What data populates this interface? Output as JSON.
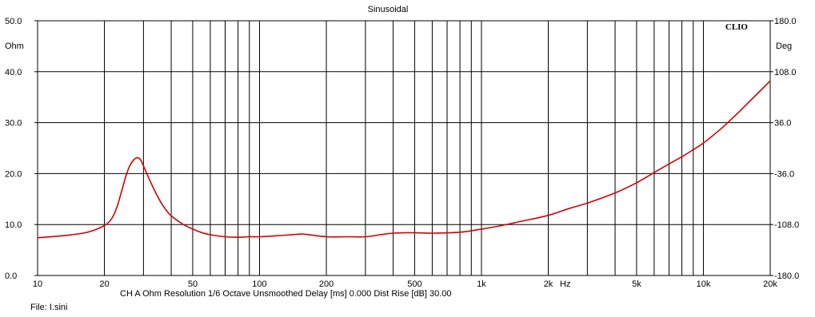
{
  "chart_data": {
    "type": "line",
    "title": "Sinusoidal",
    "brand": "CLIO",
    "x_scale": "log",
    "xlim": [
      10,
      20000
    ],
    "x_ticks": [
      {
        "v": 10,
        "label": "10"
      },
      {
        "v": 20,
        "label": "20"
      },
      {
        "v": 50,
        "label": "50"
      },
      {
        "v": 100,
        "label": "100"
      },
      {
        "v": 200,
        "label": "200"
      },
      {
        "v": 500,
        "label": "500"
      },
      {
        "v": 1000,
        "label": "1k"
      },
      {
        "v": 2000,
        "label": "2k"
      },
      {
        "v": 5000,
        "label": "5k"
      },
      {
        "v": 10000,
        "label": "10k"
      },
      {
        "v": 20000,
        "label": "20k"
      }
    ],
    "x_unit": "Hz",
    "ylim_left": [
      0,
      50
    ],
    "y_ticks_left": [
      {
        "v": 50,
        "label": "50.0"
      },
      {
        "v": 40,
        "label": "40.0"
      },
      {
        "v": 30,
        "label": "30.0"
      },
      {
        "v": 20,
        "label": "20.0"
      },
      {
        "v": 10,
        "label": "10.0"
      },
      {
        "v": 0,
        "label": "0.0"
      }
    ],
    "y_unit_left": "Ohm",
    "ylim_right": [
      -180,
      180
    ],
    "y_ticks_right": [
      {
        "v": 180,
        "label": "180.0"
      },
      {
        "v": 108,
        "label": "108.0"
      },
      {
        "v": 36,
        "label": "36.0"
      },
      {
        "v": -36,
        "label": "-36.0"
      },
      {
        "v": -108,
        "label": "-108.0"
      },
      {
        "v": -180,
        "label": "-180.0"
      }
    ],
    "y_unit_right": "Deg",
    "grid": true,
    "line_color": "#d40000",
    "series": [
      {
        "x": [
          10,
          13,
          16,
          18,
          20,
          21,
          22,
          23,
          24,
          25,
          26,
          27,
          28,
          29,
          30,
          32,
          34,
          36,
          38,
          40,
          45,
          50,
          55,
          60,
          70,
          80,
          90,
          100,
          120,
          150,
          160,
          200,
          250,
          300,
          350,
          400,
          500,
          600,
          800,
          1000,
          1200,
          1500,
          2000,
          2500,
          3000,
          4000,
          5000,
          6000,
          7000,
          8000,
          9000,
          10000,
          12000,
          14000,
          16000,
          18000,
          20000
        ],
        "y": [
          7.4,
          7.8,
          8.3,
          8.9,
          9.8,
          10.5,
          11.8,
          14.0,
          16.8,
          19.5,
          21.5,
          22.6,
          23.1,
          22.8,
          21.5,
          18.7,
          16.3,
          14.3,
          12.8,
          11.7,
          10.1,
          9.1,
          8.4,
          8.0,
          7.6,
          7.5,
          7.6,
          7.6,
          7.8,
          8.1,
          8.1,
          7.6,
          7.6,
          7.6,
          8.0,
          8.3,
          8.4,
          8.3,
          8.5,
          9.1,
          9.7,
          10.6,
          11.8,
          13.2,
          14.2,
          16.2,
          18.2,
          20.2,
          21.9,
          23.3,
          24.7,
          26.0,
          28.8,
          31.5,
          34.0,
          36.2,
          38.2
        ]
      }
    ]
  },
  "footer": {
    "info_line": "CH A   Ohm   Resolution 1/6 Octave   Unsmoothed   Delay [ms] 0.000   Dist Rise [dB] 30.00",
    "file_line": "File: I.sini"
  }
}
